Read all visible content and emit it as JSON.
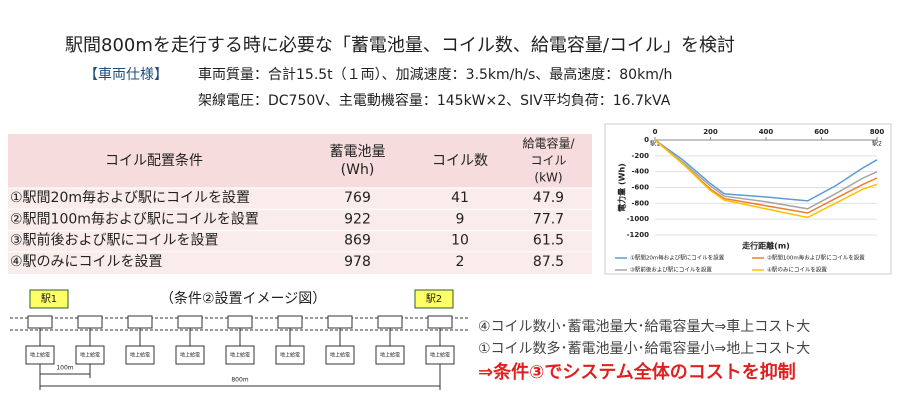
{
  "header": {
    "title": "駅間800mを走行する時に必要な「蓄電池量、コイル数、給電容量/コイル」を検討"
  },
  "specs": {
    "label": "【車両仕様】",
    "lines": [
      "車両質量：合計15.5t（１両）、加減速度：3.5km/h/s、最高速度：80km/h",
      "架線電圧：DC750V、主電動機容量：145kW×2、SIV平均負荷：16.7kVA"
    ]
  },
  "table": {
    "header": [
      [
        "コイル配置条件"
      ],
      [
        "蓄電池量",
        "(Wh)"
      ],
      [
        "コイル数"
      ],
      [
        "給電容量/",
        "コイル",
        "(kW)"
      ]
    ],
    "rows": [
      [
        "①駅間20m毎および駅にコイルを設置",
        769,
        41,
        47.9
      ],
      [
        "②駅間100m毎および駅にコイルを設置",
        922,
        9,
        77.7
      ],
      [
        "③駅前後および駅にコイルを設置",
        869,
        10,
        61.5
      ],
      [
        "④駅のみにコイルを設置",
        978,
        2,
        87.5
      ]
    ]
  },
  "chart_data": {
    "type": "line",
    "xlabel": "走行距離(m)",
    "ylabel": "電力量 (Wh)",
    "x": [
      0,
      100,
      200,
      250,
      400,
      550,
      650,
      750,
      800
    ],
    "series": [
      {
        "name": "①駅間20m毎および駅にコイルを設置",
        "color": "#5b9bd5",
        "values": [
          0,
          -250,
          -550,
          -680,
          -720,
          -769,
          -580,
          -350,
          -250
        ]
      },
      {
        "name": "②駅間100m毎および駅にコイルを設置",
        "color": "#ed7d31",
        "values": [
          0,
          -300,
          -620,
          -740,
          -830,
          -922,
          -740,
          -560,
          -480
        ]
      },
      {
        "name": "③駅前後および駅にコイルを設置",
        "color": "#a5a5a5",
        "values": [
          0,
          -280,
          -580,
          -710,
          -780,
          -869,
          -680,
          -480,
          -400
        ]
      },
      {
        "name": "④駅のみにコイルを設置",
        "color": "#ffc000",
        "values": [
          0,
          -300,
          -640,
          -760,
          -870,
          -978,
          -800,
          -620,
          -560
        ]
      }
    ],
    "xlim": [
      0,
      800
    ],
    "ylim": [
      -1200,
      0
    ],
    "xticks": [
      0,
      200,
      400,
      600,
      800
    ],
    "yticks": [
      0,
      -200,
      -400,
      -600,
      -800,
      -1000,
      -1200
    ],
    "grid": true,
    "annotations": [
      {
        "x": 0,
        "text": "駅1"
      },
      {
        "x": 800,
        "text": "駅2"
      }
    ]
  },
  "diagram": {
    "caption": "（条件②設置イメージ図）",
    "stations": [
      "駅1",
      "駅2"
    ],
    "coils": [
      "地上給電",
      "地上給電",
      "地上給電",
      "地上給電",
      "地上給電",
      "地上給電",
      "地上給電",
      "地上給電",
      "地上給電"
    ],
    "spans": [
      "100m",
      "800m"
    ]
  },
  "conclusions": {
    "lines": [
      "④コイル数小･蓄電池量大･給電容量大⇒車上コスト大",
      "①コイル数多･蓄電池量小･給電容量小⇒地上コスト大"
    ],
    "result": "⇒条件③でシステム全体のコストを抑制"
  }
}
